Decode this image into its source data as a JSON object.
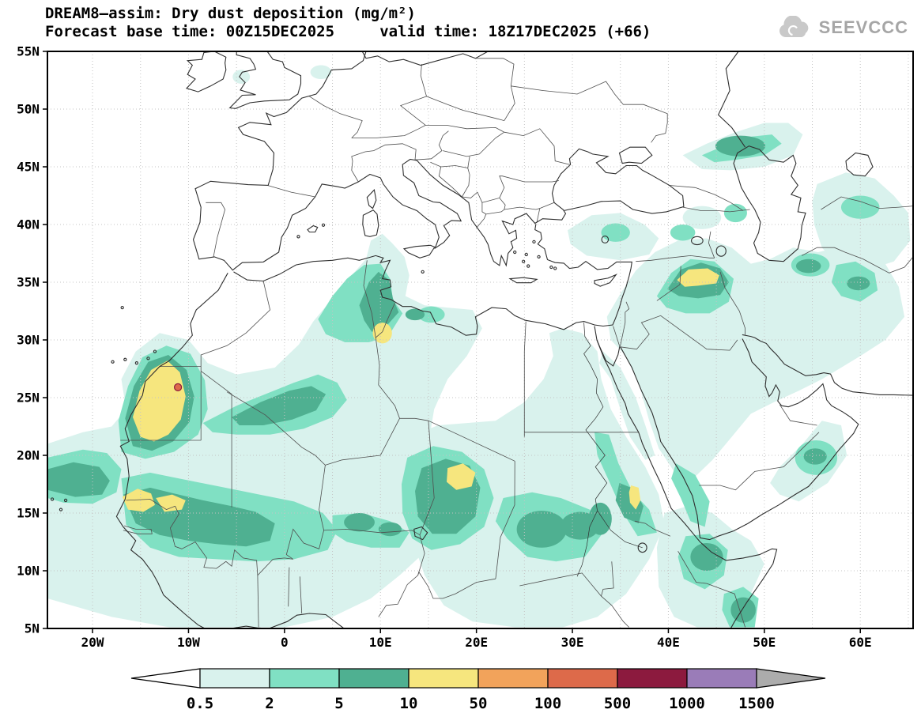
{
  "header": {
    "title": "DREAM8—assim: Dry dust deposition (mg/m²)",
    "subtitle": "Forecast base time: 00Z15DEC2025     valid time: 18Z17DEC2025 (+66)"
  },
  "logo": {
    "text": "SEEVCCC"
  },
  "map": {
    "lat_labels": [
      "55N",
      "50N",
      "45N",
      "40N",
      "35N",
      "30N",
      "25N",
      "20N",
      "15N",
      "10N",
      "5N"
    ],
    "lat_values": [
      55,
      50,
      45,
      40,
      35,
      30,
      25,
      20,
      15,
      10,
      5
    ],
    "lon_labels": [
      "20W",
      "10W",
      "0",
      "10E",
      "20E",
      "30E",
      "40E",
      "50E",
      "60E"
    ],
    "lon_values": [
      -20,
      -10,
      0,
      10,
      20,
      30,
      40,
      50,
      60
    ],
    "grid_step_deg": 5,
    "line_color": "#2f2f2f",
    "border_color": "#4f4f4f",
    "grid_color": "#c4c4c4",
    "frame_color": "#000000"
  },
  "legend": {
    "values": [
      "0.5",
      "2",
      "5",
      "10",
      "50",
      "100",
      "500",
      "1000",
      "1500"
    ],
    "colors": [
      "#ffffff",
      "#d9f2ed",
      "#80e0c3",
      "#4fb091",
      "#f6e67e",
      "#f2a35b",
      "#dd6a4a",
      "#8c1a3e",
      "#9a7cb8",
      "#acacac"
    ]
  },
  "chart_data": {
    "type": "filled-contour-map",
    "title": "DREAM8—assim: Dry dust deposition (mg/m²)",
    "levels": [
      0.5,
      2,
      5,
      10,
      50,
      100,
      500,
      1000,
      1500
    ],
    "units": "mg/m²",
    "lat_range": [
      5,
      55
    ],
    "lon_range": [
      -25,
      65
    ],
    "legend_position": "bottom"
  }
}
